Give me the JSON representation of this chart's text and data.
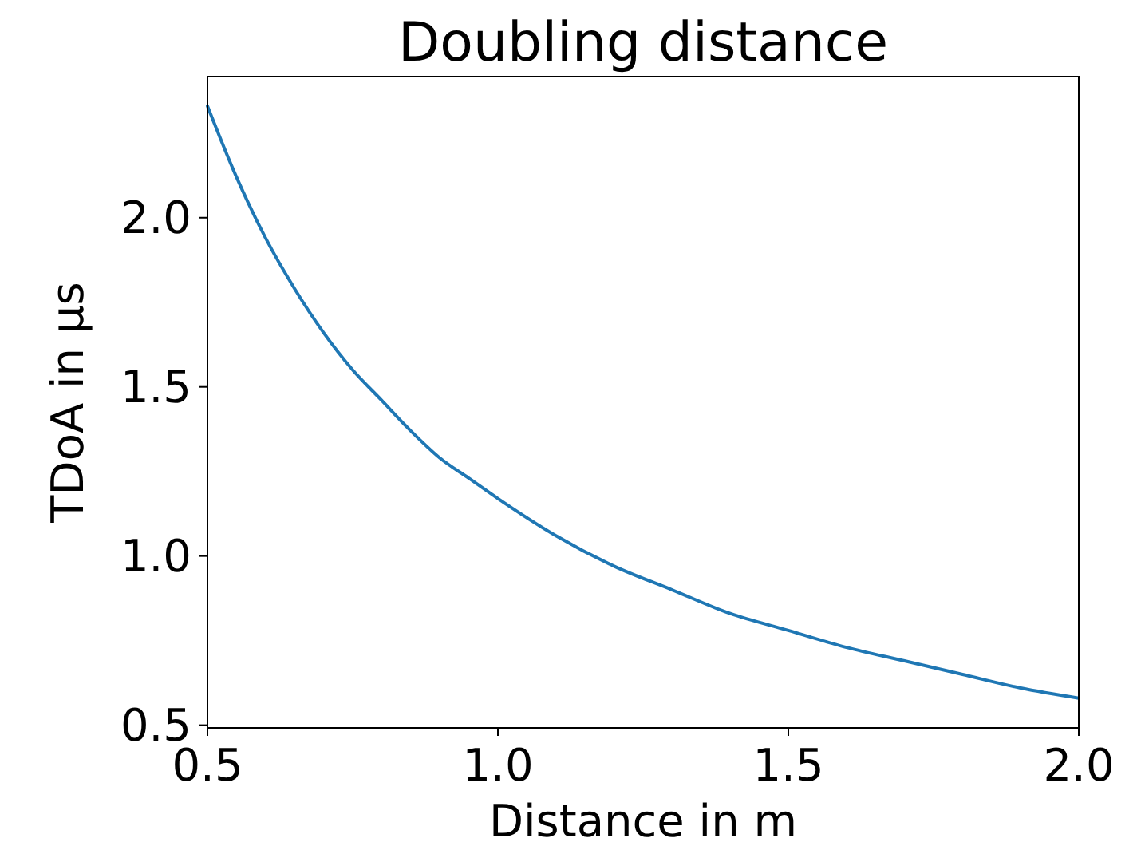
{
  "chart_data": {
    "type": "line",
    "title": "Doubling distance",
    "xlabel": "Distance in m",
    "ylabel": "TDoA in μs",
    "x": [
      0.5,
      0.55,
      0.6,
      0.65,
      0.7,
      0.75,
      0.8,
      0.85,
      0.9,
      0.95,
      1.0,
      1.1,
      1.2,
      1.3,
      1.4,
      1.5,
      1.6,
      1.7,
      1.8,
      1.9,
      2.0
    ],
    "series": [
      {
        "color": "#1f77b4",
        "values": [
          2.33,
          2.12,
          1.94,
          1.79,
          1.66,
          1.55,
          1.46,
          1.37,
          1.29,
          1.23,
          1.17,
          1.06,
          0.97,
          0.9,
          0.83,
          0.78,
          0.73,
          0.69,
          0.65,
          0.61,
          0.58
        ]
      }
    ],
    "xlim": [
      0.5,
      2.0
    ],
    "xticks": [
      {
        "value": 0.5,
        "label": "0.5"
      },
      {
        "value": 1.0,
        "label": "1.0"
      },
      {
        "value": 1.5,
        "label": "1.5"
      },
      {
        "value": 2.0,
        "label": "2.0"
      }
    ],
    "ylim": [
      0.492,
      2.417
    ],
    "yticks": [
      {
        "value": 0.5,
        "label": "0.5"
      },
      {
        "value": 1.0,
        "label": "1.0"
      },
      {
        "value": 1.5,
        "label": "1.5"
      },
      {
        "value": 2.0,
        "label": "2.0"
      }
    ],
    "grid": false,
    "marker": "none",
    "line_style": "solid"
  }
}
